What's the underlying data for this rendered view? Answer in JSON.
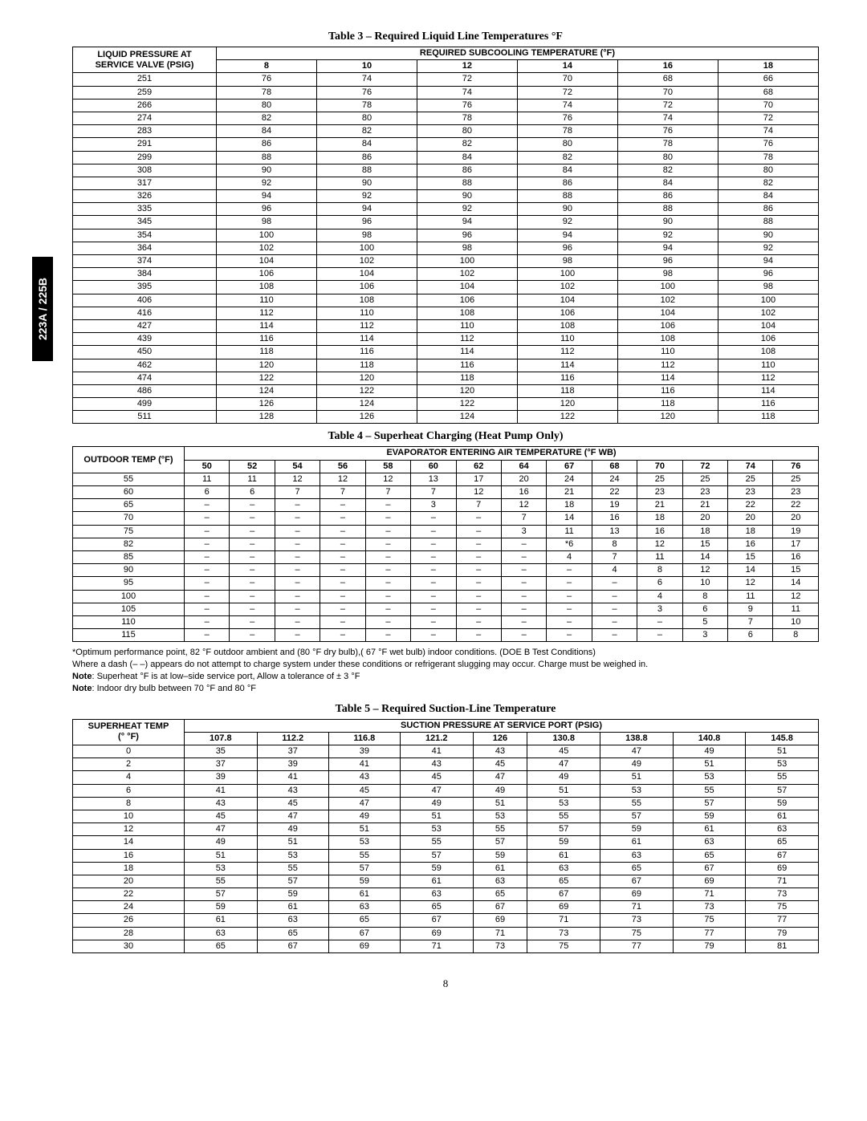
{
  "tab_label": "223A / 225B",
  "page_number": "8",
  "table3": {
    "title": "Table 3 – Required Liquid Line Temperatures °F",
    "row_header_l1": "LIQUID PRESSURE AT",
    "row_header_l2": "SERVICE VALVE (PSIG)",
    "group_header": "REQUIRED SUBCOOLING TEMPERATURE (°F)",
    "cols": [
      "8",
      "10",
      "12",
      "14",
      "16",
      "18"
    ],
    "rows": [
      {
        "p": "251",
        "v": [
          "76",
          "74",
          "72",
          "70",
          "68",
          "66"
        ]
      },
      {
        "p": "259",
        "v": [
          "78",
          "76",
          "74",
          "72",
          "70",
          "68"
        ]
      },
      {
        "p": "266",
        "v": [
          "80",
          "78",
          "76",
          "74",
          "72",
          "70"
        ]
      },
      {
        "p": "274",
        "v": [
          "82",
          "80",
          "78",
          "76",
          "74",
          "72"
        ]
      },
      {
        "p": "283",
        "v": [
          "84",
          "82",
          "80",
          "78",
          "76",
          "74"
        ]
      },
      {
        "p": "291",
        "v": [
          "86",
          "84",
          "82",
          "80",
          "78",
          "76"
        ]
      },
      {
        "p": "299",
        "v": [
          "88",
          "86",
          "84",
          "82",
          "80",
          "78"
        ]
      },
      {
        "p": "308",
        "v": [
          "90",
          "88",
          "86",
          "84",
          "82",
          "80"
        ]
      },
      {
        "p": "317",
        "v": [
          "92",
          "90",
          "88",
          "86",
          "84",
          "82"
        ]
      },
      {
        "p": "326",
        "v": [
          "94",
          "92",
          "90",
          "88",
          "86",
          "84"
        ]
      },
      {
        "p": "335",
        "v": [
          "96",
          "94",
          "92",
          "90",
          "88",
          "86"
        ]
      },
      {
        "p": "345",
        "v": [
          "98",
          "96",
          "94",
          "92",
          "90",
          "88"
        ]
      },
      {
        "p": "354",
        "v": [
          "100",
          "98",
          "96",
          "94",
          "92",
          "90"
        ]
      },
      {
        "p": "364",
        "v": [
          "102",
          "100",
          "98",
          "96",
          "94",
          "92"
        ]
      },
      {
        "p": "374",
        "v": [
          "104",
          "102",
          "100",
          "98",
          "96",
          "94"
        ]
      },
      {
        "p": "384",
        "v": [
          "106",
          "104",
          "102",
          "100",
          "98",
          "96"
        ]
      },
      {
        "p": "395",
        "v": [
          "108",
          "106",
          "104",
          "102",
          "100",
          "98"
        ]
      },
      {
        "p": "406",
        "v": [
          "110",
          "108",
          "106",
          "104",
          "102",
          "100"
        ]
      },
      {
        "p": "416",
        "v": [
          "112",
          "110",
          "108",
          "106",
          "104",
          "102"
        ]
      },
      {
        "p": "427",
        "v": [
          "114",
          "112",
          "110",
          "108",
          "106",
          "104"
        ]
      },
      {
        "p": "439",
        "v": [
          "116",
          "114",
          "112",
          "110",
          "108",
          "106"
        ]
      },
      {
        "p": "450",
        "v": [
          "118",
          "116",
          "114",
          "112",
          "110",
          "108"
        ]
      },
      {
        "p": "462",
        "v": [
          "120",
          "118",
          "116",
          "114",
          "112",
          "110"
        ]
      },
      {
        "p": "474",
        "v": [
          "122",
          "120",
          "118",
          "116",
          "114",
          "112"
        ]
      },
      {
        "p": "486",
        "v": [
          "124",
          "122",
          "120",
          "118",
          "116",
          "114"
        ]
      },
      {
        "p": "499",
        "v": [
          "126",
          "124",
          "122",
          "120",
          "118",
          "116"
        ]
      },
      {
        "p": "511",
        "v": [
          "128",
          "126",
          "124",
          "122",
          "120",
          "118"
        ]
      }
    ]
  },
  "table4": {
    "title": "Table 4 – Superheat Charging (Heat Pump Only)",
    "row_header": "OUTDOOR TEMP (°F)",
    "group_header": "EVAPORATOR ENTERING AIR TEMPERATURE (°F WB)",
    "cols": [
      "50",
      "52",
      "54",
      "56",
      "58",
      "60",
      "62",
      "64",
      "67",
      "68",
      "70",
      "72",
      "74",
      "76"
    ],
    "rows": [
      {
        "t": "55",
        "v": [
          "11",
          "11",
          "12",
          "12",
          "12",
          "13",
          "17",
          "20",
          "24",
          "24",
          "25",
          "25",
          "25",
          "25"
        ]
      },
      {
        "t": "60",
        "v": [
          "6",
          "6",
          "7",
          "7",
          "7",
          "7",
          "12",
          "16",
          "21",
          "22",
          "23",
          "23",
          "23",
          "23"
        ]
      },
      {
        "t": "65",
        "v": [
          "–",
          "–",
          "–",
          "–",
          "–",
          "3",
          "7",
          "12",
          "18",
          "19",
          "21",
          "21",
          "22",
          "22"
        ]
      },
      {
        "t": "70",
        "v": [
          "–",
          "–",
          "–",
          "–",
          "–",
          "–",
          "–",
          "7",
          "14",
          "16",
          "18",
          "20",
          "20",
          "20"
        ]
      },
      {
        "t": "75",
        "v": [
          "–",
          "–",
          "–",
          "–",
          "–",
          "–",
          "–",
          "3",
          "11",
          "13",
          "16",
          "18",
          "18",
          "19"
        ]
      },
      {
        "t": "82",
        "v": [
          "–",
          "–",
          "–",
          "–",
          "–",
          "–",
          "–",
          "–",
          "*6",
          "8",
          "12",
          "15",
          "16",
          "17"
        ]
      },
      {
        "t": "85",
        "v": [
          "–",
          "–",
          "–",
          "–",
          "–",
          "–",
          "–",
          "–",
          "4",
          "7",
          "11",
          "14",
          "15",
          "16"
        ]
      },
      {
        "t": "90",
        "v": [
          "–",
          "–",
          "–",
          "–",
          "–",
          "–",
          "–",
          "–",
          "–",
          "4",
          "8",
          "12",
          "14",
          "15"
        ]
      },
      {
        "t": "95",
        "v": [
          "–",
          "–",
          "–",
          "–",
          "–",
          "–",
          "–",
          "–",
          "–",
          "–",
          "6",
          "10",
          "12",
          "14"
        ]
      },
      {
        "t": "100",
        "v": [
          "–",
          "–",
          "–",
          "–",
          "–",
          "–",
          "–",
          "–",
          "–",
          "–",
          "4",
          "8",
          "11",
          "12"
        ]
      },
      {
        "t": "105",
        "v": [
          "–",
          "–",
          "–",
          "–",
          "–",
          "–",
          "–",
          "–",
          "–",
          "–",
          "3",
          "6",
          "9",
          "11"
        ]
      },
      {
        "t": "110",
        "v": [
          "–",
          "–",
          "–",
          "–",
          "–",
          "–",
          "–",
          "–",
          "–",
          "–",
          "–",
          "5",
          "7",
          "10"
        ]
      },
      {
        "t": "115",
        "v": [
          "–",
          "–",
          "–",
          "–",
          "–",
          "–",
          "–",
          "–",
          "–",
          "–",
          "–",
          "3",
          "6",
          "8"
        ]
      }
    ]
  },
  "notes": {
    "l1": "*Optimum performance point, 82 °F outdoor ambient and (80 °F dry bulb),( 67 °F wet bulb) indoor conditions. (DOE B Test Conditions)",
    "l2": "Where a dash (– –) appears do not attempt to charge system under these conditions or refrigerant slugging may occur. Charge must be weighed in.",
    "l3a": "Note",
    "l3b": ": Superheat °F is at low–side service port, Allow a tolerance of ± 3 °F",
    "l4a": "Note",
    "l4b": ": Indoor dry bulb between 70 °F and 80 °F"
  },
  "table5": {
    "title": "Table 5 – Required Suction-Line Temperature",
    "row_header_l1": "SUPERHEAT TEMP",
    "row_header_l2": "(° °F)",
    "group_header": "SUCTION PRESSURE AT SERVICE PORT (PSIG)",
    "cols": [
      "107.8",
      "112.2",
      "116.8",
      "121.2",
      "126",
      "130.8",
      "138.8",
      "140.8",
      "145.8"
    ],
    "rows": [
      {
        "t": "0",
        "v": [
          "35",
          "37",
          "39",
          "41",
          "43",
          "45",
          "47",
          "49",
          "51"
        ]
      },
      {
        "t": "2",
        "v": [
          "37",
          "39",
          "41",
          "43",
          "45",
          "47",
          "49",
          "51",
          "53"
        ]
      },
      {
        "t": "4",
        "v": [
          "39",
          "41",
          "43",
          "45",
          "47",
          "49",
          "51",
          "53",
          "55"
        ]
      },
      {
        "t": "6",
        "v": [
          "41",
          "43",
          "45",
          "47",
          "49",
          "51",
          "53",
          "55",
          "57"
        ]
      },
      {
        "t": "8",
        "v": [
          "43",
          "45",
          "47",
          "49",
          "51",
          "53",
          "55",
          "57",
          "59"
        ]
      },
      {
        "t": "10",
        "v": [
          "45",
          "47",
          "49",
          "51",
          "53",
          "55",
          "57",
          "59",
          "61"
        ]
      },
      {
        "t": "12",
        "v": [
          "47",
          "49",
          "51",
          "53",
          "55",
          "57",
          "59",
          "61",
          "63"
        ]
      },
      {
        "t": "14",
        "v": [
          "49",
          "51",
          "53",
          "55",
          "57",
          "59",
          "61",
          "63",
          "65"
        ]
      },
      {
        "t": "16",
        "v": [
          "51",
          "53",
          "55",
          "57",
          "59",
          "61",
          "63",
          "65",
          "67"
        ]
      },
      {
        "t": "18",
        "v": [
          "53",
          "55",
          "57",
          "59",
          "61",
          "63",
          "65",
          "67",
          "69"
        ]
      },
      {
        "t": "20",
        "v": [
          "55",
          "57",
          "59",
          "61",
          "63",
          "65",
          "67",
          "69",
          "71"
        ]
      },
      {
        "t": "22",
        "v": [
          "57",
          "59",
          "61",
          "63",
          "65",
          "67",
          "69",
          "71",
          "73"
        ]
      },
      {
        "t": "24",
        "v": [
          "59",
          "61",
          "63",
          "65",
          "67",
          "69",
          "71",
          "73",
          "75"
        ]
      },
      {
        "t": "26",
        "v": [
          "61",
          "63",
          "65",
          "67",
          "69",
          "71",
          "73",
          "75",
          "77"
        ]
      },
      {
        "t": "28",
        "v": [
          "63",
          "65",
          "67",
          "69",
          "71",
          "73",
          "75",
          "77",
          "79"
        ]
      },
      {
        "t": "30",
        "v": [
          "65",
          "67",
          "69",
          "71",
          "73",
          "75",
          "77",
          "79",
          "81"
        ]
      }
    ]
  }
}
